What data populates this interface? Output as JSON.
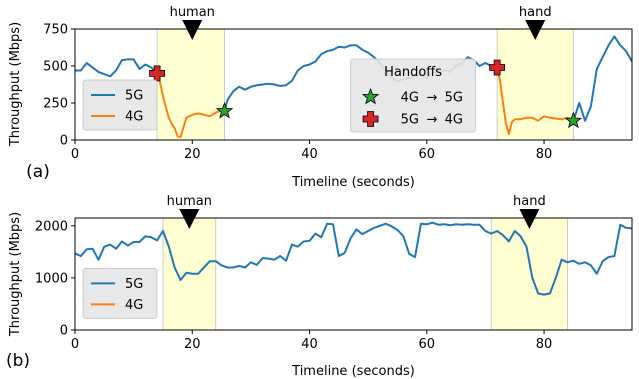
{
  "chart_data": [
    {
      "type": "line",
      "panel_label": "(a)",
      "xlabel": "Timeline (seconds)",
      "ylabel": "Throughput (Mbps)",
      "xlim": [
        0,
        95
      ],
      "ylim": [
        0,
        750
      ],
      "xticks": [
        0,
        20,
        40,
        60,
        80
      ],
      "yticks": [
        0,
        250,
        500,
        750
      ],
      "grid": false,
      "shaded_regions": [
        [
          14,
          25.5
        ],
        [
          72,
          85
        ]
      ],
      "event_markers": [
        {
          "x": 20,
          "label": "human"
        },
        {
          "x": 78.5,
          "label": "hand"
        }
      ],
      "series": [
        {
          "name": "5G",
          "color": "#1f77b4",
          "segments": [
            {
              "x": [
                0,
                1,
                2,
                3,
                4,
                5,
                6,
                7,
                8,
                9,
                10,
                11,
                12,
                13,
                14
              ],
              "y": [
                470,
                470,
                520,
                490,
                460,
                445,
                430,
                470,
                540,
                545,
                545,
                480,
                510,
                490,
                450
              ]
            },
            {
              "x": [
                25.5,
                26,
                27,
                28,
                29,
                30,
                31,
                32,
                33,
                34,
                35,
                36,
                37,
                38,
                39,
                40,
                41,
                42,
                43,
                44,
                45,
                46,
                47,
                48,
                49,
                50,
                51,
                52,
                53,
                54,
                55,
                56,
                57,
                58,
                59,
                60,
                61,
                62,
                63,
                64,
                65,
                66,
                67,
                68,
                69,
                70,
                71,
                72
              ],
              "y": [
                195,
                270,
                330,
                360,
                340,
                360,
                370,
                375,
                380,
                375,
                365,
                370,
                400,
                470,
                500,
                510,
                530,
                580,
                600,
                610,
                630,
                625,
                640,
                640,
                610,
                590,
                560,
                520,
                470,
                420,
                400,
                410,
                420,
                430,
                440,
                420,
                460,
                450,
                470,
                460,
                500,
                520,
                560,
                540,
                500,
                520,
                500,
                490
              ]
            },
            {
              "x": [
                85,
                86,
                87,
                88,
                89,
                90,
                91,
                92,
                93,
                94,
                95
              ],
              "y": [
                130,
                250,
                130,
                230,
                480,
                560,
                640,
                700,
                640,
                600,
                530
              ]
            }
          ]
        },
        {
          "name": "4G",
          "color": "#ff7f0e",
          "segments": [
            {
              "x": [
                14,
                14.5,
                15,
                15.5,
                16,
                16.5,
                17,
                17.5,
                18,
                19,
                20,
                21,
                22,
                23,
                24,
                25,
                25.5
              ],
              "y": [
                450,
                390,
                300,
                220,
                150,
                110,
                80,
                25,
                20,
                150,
                170,
                180,
                170,
                160,
                185,
                200,
                195
              ]
            },
            {
              "x": [
                72,
                72.5,
                73,
                73.5,
                74,
                74.5,
                75,
                76,
                77,
                78,
                79,
                80,
                81,
                82,
                83,
                84,
                85
              ],
              "y": [
                490,
                400,
                250,
                110,
                40,
                120,
                140,
                140,
                150,
                150,
                130,
                160,
                150,
                145,
                140,
                150,
                130
              ]
            }
          ]
        }
      ],
      "handoffs": [
        {
          "x": 25.5,
          "y": 195,
          "type": "4G→5G",
          "marker": "star",
          "color": "#2ca02c"
        },
        {
          "x": 85,
          "y": 130,
          "type": "4G→5G",
          "marker": "star",
          "color": "#2ca02c"
        },
        {
          "x": 14,
          "y": 450,
          "type": "5G→4G",
          "marker": "plus",
          "color": "#d62728"
        },
        {
          "x": 72,
          "y": 490,
          "type": "5G→4G",
          "marker": "plus",
          "color": "#d62728"
        }
      ],
      "legend": {
        "placement": "left-middle",
        "entries": [
          {
            "label": "5G",
            "color": "#1f77b4"
          },
          {
            "label": "4G",
            "color": "#ff7f0e"
          }
        ]
      },
      "handoff_legend": {
        "title": "Handoffs",
        "entries": [
          {
            "from": "4G",
            "arrow": "→",
            "to": "5G",
            "marker": "star",
            "color": "#2ca02c"
          },
          {
            "from": "5G",
            "arrow": "→",
            "to": "4G",
            "marker": "plus",
            "color": "#d62728"
          }
        ]
      }
    },
    {
      "type": "line",
      "panel_label": "(b)",
      "xlabel": "Timeline (seconds)",
      "ylabel": "Throughput (Mbps)",
      "xlim": [
        0,
        95
      ],
      "ylim": [
        0,
        2150
      ],
      "xticks": [
        0,
        20,
        40,
        60,
        80
      ],
      "yticks": [
        0,
        1000,
        2000
      ],
      "grid": false,
      "shaded_regions": [
        [
          15,
          24
        ],
        [
          71,
          84
        ]
      ],
      "event_markers": [
        {
          "x": 19.5,
          "label": "human"
        },
        {
          "x": 77.5,
          "label": "hand"
        }
      ],
      "series": [
        {
          "name": "5G",
          "color": "#1f77b4",
          "segments": [
            {
              "x": [
                0,
                1,
                2,
                3,
                4,
                5,
                6,
                7,
                8,
                9,
                10,
                11,
                12,
                13,
                14,
                15,
                16,
                17,
                18,
                19,
                20,
                21,
                22,
                23,
                24,
                25,
                26,
                27,
                28,
                29,
                30,
                31,
                32,
                33,
                34,
                35,
                36,
                37,
                38,
                39,
                40,
                41,
                42,
                43,
                44,
                45,
                46,
                47,
                48,
                49,
                50,
                51,
                52,
                53,
                54,
                55,
                56,
                57,
                58,
                59,
                60,
                61,
                62,
                63,
                64,
                65,
                66,
                67,
                68,
                69,
                70,
                71,
                72,
                73,
                74,
                75,
                76,
                77,
                78,
                79,
                80,
                81,
                82,
                83,
                84,
                85,
                86,
                87,
                88,
                89,
                90,
                91,
                92,
                93,
                94,
                95
              ],
              "y": [
                1470,
                1420,
                1550,
                1560,
                1350,
                1600,
                1640,
                1560,
                1700,
                1620,
                1690,
                1690,
                1800,
                1780,
                1720,
                1900,
                1600,
                1200,
                960,
                1100,
                1080,
                1080,
                1200,
                1320,
                1320,
                1240,
                1200,
                1200,
                1230,
                1200,
                1300,
                1250,
                1380,
                1370,
                1350,
                1420,
                1330,
                1640,
                1600,
                1700,
                1710,
                1850,
                1780,
                2040,
                2030,
                1420,
                1480,
                1760,
                1930,
                1840,
                1900,
                1960,
                2000,
                2040,
                1990,
                1920,
                1800,
                1460,
                1400,
                2040,
                2030,
                2060,
                2020,
                2030,
                2010,
                2030,
                2020,
                2030,
                2020,
                2020,
                1900,
                1850,
                1900,
                1820,
                1700,
                1900,
                1800,
                1600,
                1000,
                700,
                680,
                700,
                1000,
                1350,
                1300,
                1330,
                1270,
                1300,
                1240,
                1080,
                1320,
                1400,
                1420,
                2020,
                1960,
                1950
              ]
            }
          ]
        },
        {
          "name": "4G",
          "color": "#ff7f0e",
          "segments": []
        }
      ],
      "legend": {
        "placement": "left-middle",
        "entries": [
          {
            "label": "5G",
            "color": "#1f77b4"
          },
          {
            "label": "4G",
            "color": "#ff7f0e"
          }
        ]
      }
    }
  ]
}
